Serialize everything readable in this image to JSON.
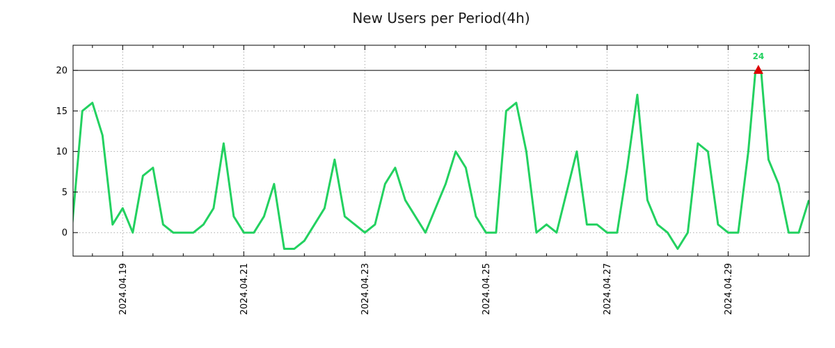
{
  "title": "New Users per Period(4h)",
  "colors": {
    "line": "#23D160",
    "marker": "#DD0000",
    "annotation_text": "#23D160",
    "grid": "#AAAAAA",
    "axis": "#000000",
    "max_line": "#000000",
    "tick_text": "#000000",
    "title_text": "#1A1A1A",
    "background": "#FFFFFF"
  },
  "chart_data": {
    "type": "line",
    "title": "New Users per Period(4h)",
    "legend": "none",
    "grid": "dotted",
    "series_start": "2024-04-18 04:00",
    "period_hours": 4,
    "first_point_day_offset": 0.1667,
    "values": [
      1,
      15,
      16,
      12,
      1,
      3,
      0,
      7,
      8,
      1,
      0,
      0,
      0,
      1,
      3,
      11,
      2,
      0,
      0,
      2,
      6,
      -2,
      -2,
      -1,
      1,
      3,
      9,
      2,
      1,
      0,
      1,
      6,
      8,
      4,
      2,
      0,
      3,
      6,
      10,
      8,
      2,
      0,
      0,
      15,
      16,
      10,
      0,
      1,
      0,
      5,
      10,
      1,
      1,
      0,
      0,
      8,
      17,
      4,
      1,
      0,
      -2,
      0,
      11,
      10,
      1,
      0,
      0,
      10,
      24,
      9,
      6,
      0,
      0,
      4
    ],
    "annotation": {
      "label": "24",
      "value": 24,
      "point_index": 68,
      "marker": "triangle-up"
    },
    "y_axis": {
      "tick_labels": [
        "0",
        "5",
        "10",
        "15",
        "20"
      ],
      "tick_values": [
        0,
        5,
        10,
        15,
        20
      ],
      "gridline_values": [
        0,
        5,
        10,
        15
      ],
      "max_line_value": 20,
      "clip_max": 20,
      "range": [
        -2.9,
        23.1
      ]
    },
    "x_axis": {
      "tick_labels": [
        "2024.04.19",
        "2024.04.21",
        "2024.04.23",
        "2024.04.25",
        "2024.04.27",
        "2024.04.29"
      ],
      "tick_day_offsets": [
        1,
        3,
        5,
        7,
        9,
        11
      ],
      "minor_tick_step_days": 0.5,
      "range_days": [
        0.18,
        12.34
      ]
    }
  }
}
